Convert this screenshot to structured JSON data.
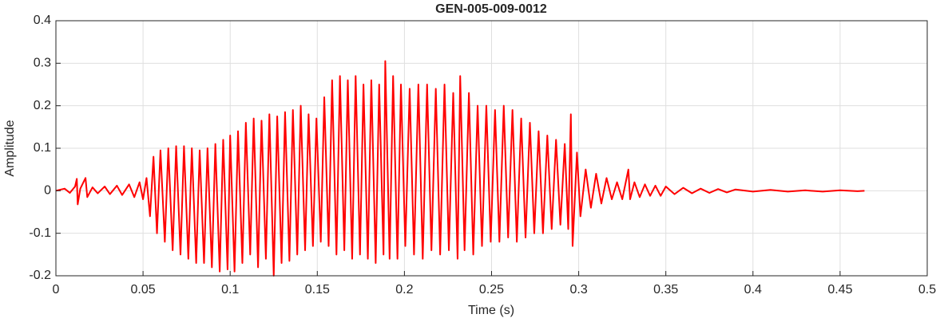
{
  "chart_data": {
    "type": "line",
    "title": "GEN-005-009-0012",
    "x_label": "Time (s)",
    "y_label": "Amplitude",
    "color": "#ff0000",
    "x": [
      0,
      0.005,
      0.008,
      0.011,
      0.012,
      0.0125,
      0.014,
      0.017,
      0.018,
      0.021,
      0.024,
      0.028,
      0.031,
      0.035,
      0.038,
      0.042,
      0.045,
      0.048,
      0.05,
      0.052,
      0.054,
      0.056,
      0.058,
      0.06,
      0.0625,
      0.0645,
      0.067,
      0.069,
      0.0715,
      0.0735,
      0.076,
      0.078,
      0.0805,
      0.0825,
      0.085,
      0.087,
      0.0895,
      0.0915,
      0.094,
      0.096,
      0.0985,
      0.1,
      0.1025,
      0.1045,
      0.107,
      0.109,
      0.1115,
      0.1135,
      0.116,
      0.118,
      0.1205,
      0.1225,
      0.125,
      0.127,
      0.1295,
      0.1315,
      0.134,
      0.136,
      0.1385,
      0.1405,
      0.143,
      0.145,
      0.1475,
      0.1495,
      0.152,
      0.154,
      0.1565,
      0.1585,
      0.161,
      0.163,
      0.1655,
      0.1675,
      0.17,
      0.172,
      0.1745,
      0.1765,
      0.179,
      0.181,
      0.1835,
      0.1855,
      0.188,
      0.189,
      0.1915,
      0.1935,
      0.196,
      0.198,
      0.2005,
      0.203,
      0.2055,
      0.208,
      0.2105,
      0.213,
      0.2155,
      0.218,
      0.2205,
      0.223,
      0.2255,
      0.228,
      0.2305,
      0.232,
      0.2345,
      0.237,
      0.2395,
      0.242,
      0.2445,
      0.247,
      0.2495,
      0.252,
      0.2545,
      0.257,
      0.2595,
      0.262,
      0.2645,
      0.267,
      0.2695,
      0.272,
      0.2745,
      0.277,
      0.2795,
      0.282,
      0.2845,
      0.287,
      0.2895,
      0.292,
      0.294,
      0.2955,
      0.2965,
      0.299,
      0.301,
      0.304,
      0.307,
      0.31,
      0.313,
      0.316,
      0.319,
      0.322,
      0.325,
      0.3285,
      0.3295,
      0.332,
      0.335,
      0.338,
      0.341,
      0.344,
      0.347,
      0.35,
      0.355,
      0.36,
      0.365,
      0.37,
      0.375,
      0.38,
      0.385,
      0.39,
      0.4,
      0.41,
      0.42,
      0.43,
      0.44,
      0.45,
      0.46,
      0.464
    ],
    "values": [
      0,
      0.005,
      -0.005,
      0.01,
      0.028,
      -0.032,
      0.005,
      0.03,
      -0.015,
      0.008,
      -0.006,
      0.01,
      -0.008,
      0.012,
      -0.01,
      0.015,
      -0.015,
      0.02,
      -0.02,
      0.03,
      -0.06,
      0.08,
      -0.1,
      0.095,
      -0.12,
      0.1,
      -0.14,
      0.105,
      -0.15,
      0.105,
      -0.16,
      0.1,
      -0.17,
      0.095,
      -0.17,
      0.1,
      -0.18,
      0.11,
      -0.19,
      0.12,
      -0.185,
      0.13,
      -0.19,
      0.14,
      -0.17,
      0.16,
      -0.15,
      0.17,
      -0.18,
      0.165,
      -0.16,
      0.18,
      -0.2,
      0.175,
      -0.17,
      0.185,
      -0.165,
      0.19,
      -0.15,
      0.2,
      -0.14,
      0.18,
      -0.13,
      0.17,
      -0.12,
      0.22,
      -0.13,
      0.26,
      -0.15,
      0.27,
      -0.14,
      0.26,
      -0.16,
      0.27,
      -0.15,
      0.25,
      -0.16,
      0.26,
      -0.17,
      0.25,
      -0.15,
      0.305,
      -0.16,
      0.27,
      -0.16,
      0.25,
      -0.13,
      0.24,
      -0.15,
      0.25,
      -0.16,
      0.25,
      -0.14,
      0.24,
      -0.15,
      0.25,
      -0.14,
      0.23,
      -0.16,
      0.27,
      -0.14,
      0.23,
      -0.15,
      0.2,
      -0.13,
      0.2,
      -0.12,
      0.19,
      -0.12,
      0.2,
      -0.11,
      0.19,
      -0.12,
      0.17,
      -0.11,
      0.16,
      -0.1,
      0.14,
      -0.1,
      0.13,
      -0.09,
      0.12,
      -0.08,
      0.11,
      -0.09,
      0.18,
      -0.13,
      0.09,
      -0.06,
      0.05,
      -0.04,
      0.04,
      -0.03,
      0.03,
      -0.02,
      0.02,
      -0.02,
      0.05,
      -0.02,
      0.02,
      -0.015,
      0.015,
      -0.012,
      0.012,
      -0.012,
      0.01,
      -0.008,
      0.007,
      -0.006,
      0.005,
      -0.005,
      0.004,
      -0.004,
      0.003,
      -0.002,
      0.002,
      -0.002,
      0.001,
      -0.002,
      0.001,
      -0.001,
      0
    ],
    "xlim": [
      0,
      0.5
    ],
    "xticks": [
      0,
      0.05,
      0.1,
      0.15,
      0.2,
      0.25,
      0.3,
      0.35,
      0.4,
      0.45,
      0.5
    ],
    "ylim": [
      -0.2,
      0.4
    ],
    "yticks": [
      -0.2,
      -0.1,
      0,
      0.1,
      0.2,
      0.3,
      0.4
    ],
    "grid": true
  }
}
